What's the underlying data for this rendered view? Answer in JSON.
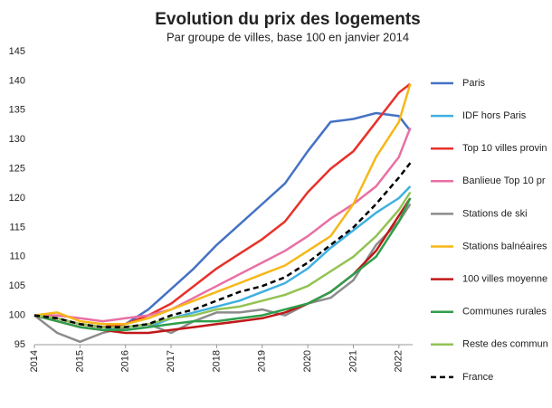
{
  "chart_data": {
    "type": "line",
    "title": "Evolution du prix des logements",
    "subtitle": "Par groupe de villes, base 100 en janvier 2014",
    "x": [
      2014,
      2014.5,
      2015,
      2015.5,
      2016,
      2016.5,
      2017,
      2017.5,
      2018,
      2018.5,
      2019,
      2019.5,
      2020,
      2020.5,
      2021,
      2021.5,
      2022,
      2022.25
    ],
    "xlim": [
      2014,
      2022.5
    ],
    "xticks": [
      2014,
      2015,
      2016,
      2017,
      2018,
      2019,
      2020,
      2021,
      2022
    ],
    "ylim": [
      95,
      145
    ],
    "yticks": [
      95,
      100,
      105,
      110,
      115,
      120,
      125,
      130,
      135,
      140,
      145
    ],
    "grid": false,
    "series": [
      {
        "name": "Paris",
        "color": "#4472c4",
        "values": [
          100,
          99.5,
          98.5,
          98,
          98.5,
          101,
          104.5,
          108,
          112,
          115.5,
          119,
          122.5,
          128,
          133,
          133.5,
          134.5,
          134,
          131.5
        ]
      },
      {
        "name": "IDF hors Paris",
        "color": "#3fb0e0",
        "values": [
          100,
          99.5,
          98.5,
          98,
          97.5,
          98,
          99.5,
          100.5,
          101.5,
          102.5,
          104,
          105.5,
          108,
          111.5,
          114.5,
          117.5,
          120,
          122
        ]
      },
      {
        "name": "Top 10 villes provin",
        "color": "#e8312a",
        "values": [
          100,
          99.5,
          98.5,
          98,
          98.5,
          100,
          102,
          105,
          108,
          110.5,
          113,
          116,
          121,
          125,
          128,
          133,
          138,
          139.5
        ]
      },
      {
        "name": "Banlieue Top 10 pr",
        "color": "#e96fa3",
        "values": [
          100,
          100,
          99.5,
          99,
          99.5,
          100,
          101,
          103,
          105,
          107,
          109,
          111,
          113.5,
          116.5,
          119,
          122,
          127,
          132
        ]
      },
      {
        "name": "Stations de ski",
        "color": "#8c8c8c",
        "values": [
          100,
          97,
          95.5,
          97,
          98,
          98.5,
          97,
          99,
          100.5,
          100.5,
          101,
          100,
          102,
          103,
          106,
          112,
          116,
          119
        ]
      },
      {
        "name": "Stations balnéaires",
        "color": "#f6b818",
        "values": [
          100,
          100.5,
          99,
          98.5,
          98.5,
          99.5,
          101,
          102.5,
          104,
          105.5,
          107,
          108.5,
          111,
          113.5,
          119,
          127,
          133,
          139.5
        ]
      },
      {
        "name": "100 villes moyenne",
        "color": "#c01818",
        "values": [
          100,
          99,
          98,
          97.5,
          97,
          97,
          97.5,
          98,
          98.5,
          99,
          99.5,
          100.5,
          102,
          104,
          107,
          111,
          117,
          120
        ]
      },
      {
        "name": "Communes rurales",
        "color": "#2e9e4a",
        "values": [
          100,
          99,
          98,
          97.5,
          97.5,
          98,
          98.5,
          99,
          99,
          99.5,
          100,
          101,
          102,
          104,
          107,
          110,
          116,
          120
        ]
      },
      {
        "name": "Reste des commun",
        "color": "#92c353",
        "values": [
          100,
          99.5,
          98.5,
          98,
          98,
          98.5,
          99.5,
          100,
          101,
          101.5,
          102.5,
          103.5,
          105,
          107.5,
          110,
          113.5,
          118,
          121
        ]
      },
      {
        "name": "France",
        "color": "#000000",
        "dashed": true,
        "values": [
          100,
          99.5,
          98.5,
          98,
          98,
          98.5,
          100,
          101,
          102.5,
          104,
          105,
          106.5,
          109,
          112,
          115,
          119,
          123.5,
          126
        ]
      }
    ]
  }
}
